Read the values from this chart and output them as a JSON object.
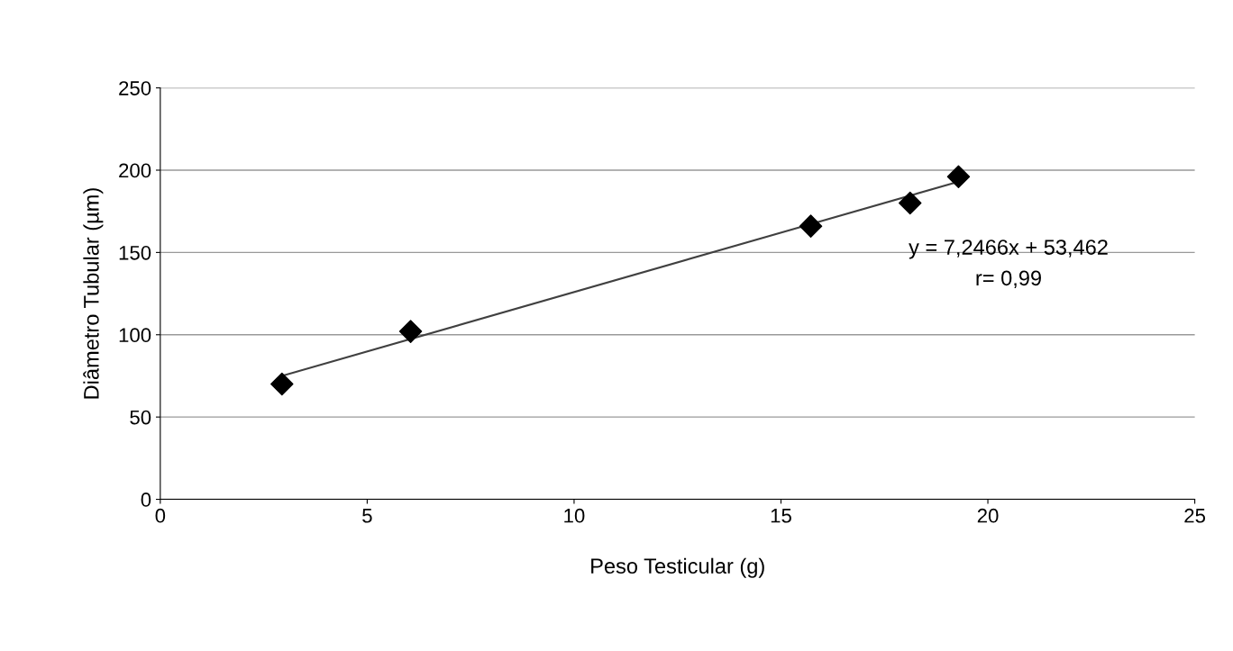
{
  "chart_data": {
    "type": "scatter",
    "xlabel": "Peso Testicular (g)",
    "ylabel": "Diâmetro Tubular (µm)",
    "series": [
      {
        "color": "#000000",
        "x": [
          2.94,
          6.05,
          15.72,
          18.12,
          19.29
        ],
        "values": [
          70,
          102,
          166,
          180,
          196
        ],
        "marker": "diamond"
      },
      {
        "type": "line",
        "color": "#404040",
        "x": [
          2.94,
          19.29
        ],
        "values": [
          75,
          193
        ],
        "marker": "none",
        "line_style": "solid"
      }
    ],
    "xlim": [
      0,
      25
    ],
    "xticks": [
      0,
      5,
      10,
      15,
      20,
      25
    ],
    "ylim": [
      0,
      250
    ],
    "yticks": [
      0,
      50,
      100,
      150,
      200,
      250
    ],
    "grid": "y",
    "legend": false,
    "annotations": [
      "y = 7,2466x + 53,462",
      "r= 0,99"
    ]
  }
}
